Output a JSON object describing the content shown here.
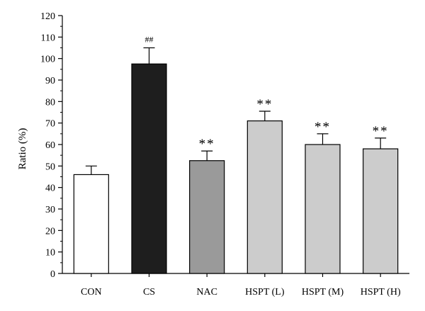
{
  "chart_data": {
    "type": "bar",
    "ylabel": "Ratio (%)",
    "xlabel": "",
    "ylim": [
      0,
      120
    ],
    "yticks": [
      0,
      10,
      20,
      30,
      40,
      50,
      60,
      70,
      80,
      90,
      100,
      110,
      120
    ],
    "grid": false,
    "categories": [
      "CON",
      "CS",
      "NAC",
      "HSPT (L)",
      "HSPT (M)",
      "HSPT (H)"
    ],
    "values": [
      46,
      97.5,
      52.5,
      71,
      60,
      58
    ],
    "errors": [
      4,
      7.5,
      4.5,
      4.5,
      5,
      5
    ],
    "annotations": [
      "",
      "##",
      "**",
      "**",
      "**",
      "**"
    ],
    "colors": [
      "#ffffff",
      "#1e1e1e",
      "#9a9a9a",
      "#cccccc",
      "#cccccc",
      "#cccccc"
    ]
  }
}
